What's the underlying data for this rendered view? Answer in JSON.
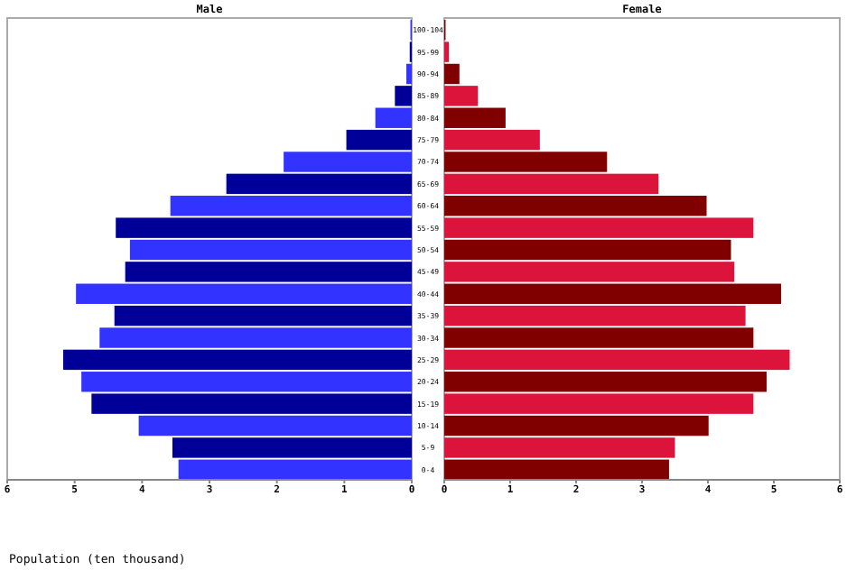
{
  "chart_data": [
    {
      "type": "bar",
      "title": "Male",
      "orientation": "horizontal",
      "xlabel": "Population (ten thousand)",
      "categories": [
        "100-104",
        "95-99",
        "90-94",
        "85-89",
        "80-84",
        "75-79",
        "70-74",
        "65-69",
        "60-64",
        "55-59",
        "50-54",
        "45-49",
        "40-44",
        "35-39",
        "30-34",
        "25-29",
        "20-24",
        "15-19",
        "10-14",
        "5-9",
        "0-4"
      ],
      "values": [
        0.02,
        0.03,
        0.08,
        0.25,
        0.54,
        0.97,
        1.9,
        2.75,
        3.58,
        4.39,
        4.18,
        4.25,
        4.98,
        4.41,
        4.63,
        5.17,
        4.9,
        4.75,
        4.05,
        3.55,
        3.46
      ],
      "colors": [
        "#3333ff",
        "#000099",
        "#3333ff",
        "#000099",
        "#3333ff",
        "#000099",
        "#3333ff",
        "#000099",
        "#3333ff",
        "#000099",
        "#3333ff",
        "#000099",
        "#3333ff",
        "#000099",
        "#3333ff",
        "#000099",
        "#3333ff",
        "#000099",
        "#3333ff",
        "#000099",
        "#3333ff"
      ],
      "xlim": [
        6,
        0
      ],
      "xticks": [
        6,
        5,
        4,
        3,
        2,
        1,
        0
      ],
      "grid": false
    },
    {
      "type": "bar",
      "title": "Female",
      "orientation": "horizontal",
      "categories": [
        null,
        null,
        null,
        null,
        null,
        null,
        null,
        null,
        null,
        null,
        null,
        null,
        null,
        null,
        null,
        null,
        null,
        null,
        null,
        null,
        null
      ],
      "values": [
        0.02,
        0.07,
        0.23,
        0.51,
        0.93,
        1.45,
        2.47,
        3.25,
        3.98,
        4.69,
        4.35,
        4.4,
        5.11,
        4.57,
        4.69,
        5.24,
        4.89,
        4.69,
        4.01,
        3.5,
        3.41
      ],
      "colors": [
        "#800000",
        "#dc143c",
        "#800000",
        "#dc143c",
        "#800000",
        "#dc143c",
        "#800000",
        "#dc143c",
        "#800000",
        "#dc143c",
        "#800000",
        "#dc143c",
        "#800000",
        "#dc143c",
        "#800000",
        "#dc143c",
        "#800000",
        "#dc143c",
        "#800000",
        "#dc143c",
        "#800000"
      ],
      "xlim": [
        0,
        6
      ],
      "xticks": [
        0,
        1,
        2,
        3,
        4,
        5,
        6
      ],
      "tick_labels": "x",
      "grid": false
    }
  ]
}
